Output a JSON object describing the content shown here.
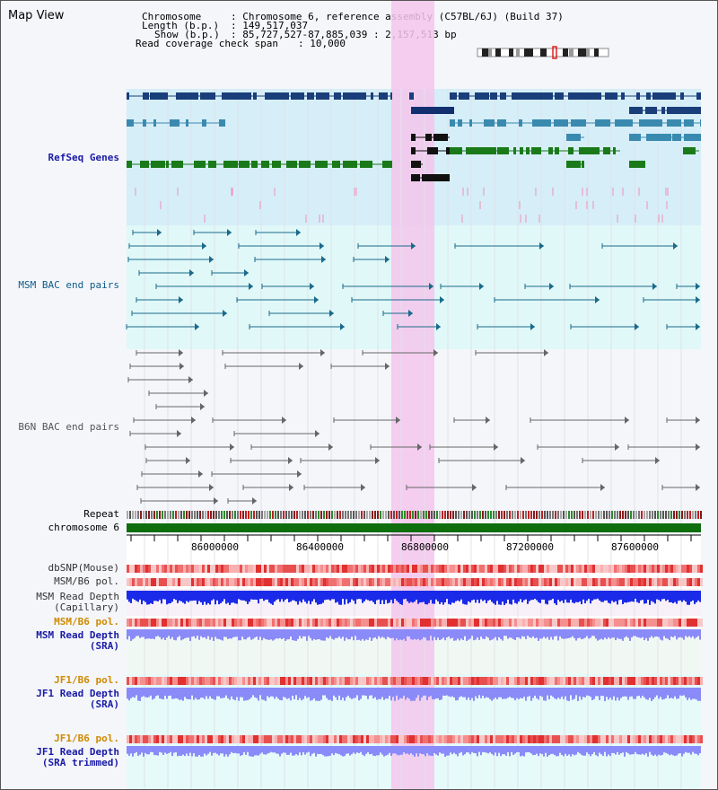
{
  "title": "Map View",
  "info": {
    "chromosome_key": "Chromosome",
    "chromosome_val": ": Chromosome 6, reference assembly (C57BL/6J) (Build 37)",
    "length_key": "Length (b.p.)",
    "length_val": ": 149,517,037",
    "show_key": "Show (b.p.)",
    "show_val": ": 85,727,527-87,885,039 : 2,157,513 bp",
    "span_key": "Read coverage check span",
    "span_val": ": 10,000"
  },
  "tracks": {
    "refseq": "RefSeq Genes",
    "msm_bac": "MSM BAC end pairs",
    "b6n_bac": "B6N BAC end pairs",
    "repeat": "Repeat",
    "chromosome": "chromosome 6",
    "dbsnp": "dbSNP(Mouse)",
    "msm_b6_pol": "MSM/B6 pol.",
    "msm_read_depth_cap": "MSM Read Depth\n(Capillary)",
    "msm_b6_pol2": "MSM/B6 pol.",
    "msm_read_depth_sra": "MSM Read Depth\n(SRA)",
    "jf1_b6_pol": "JF1/B6 pol.",
    "jf1_read_depth_sra": "JF1 Read Depth\n(SRA)",
    "jf1_b6_pol2": "JF1/B6 pol.",
    "jf1_read_depth_trim": "JF1 Read Depth\n(SRA trimmed)"
  },
  "axis": {
    "ticks": [
      "86000000",
      "86400000",
      "86800000",
      "87200000",
      "87600000"
    ]
  },
  "colors": {
    "refseq_label": "#1a1aa6",
    "msm_label": "#0d5c8a",
    "b6n_label": "#555555",
    "orange_label": "#d08a00",
    "blue_label": "#1a1aa6",
    "highlight": "#f3c6ec"
  }
}
